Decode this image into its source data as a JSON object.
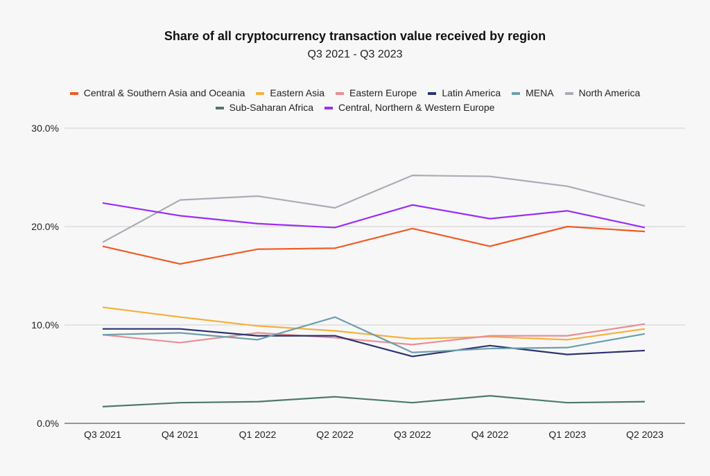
{
  "chart_data": {
    "type": "line",
    "title": "Share of all cryptocurrency transaction value received by region",
    "subtitle": "Q3 2021 - Q3 2023",
    "xlabel": "",
    "ylabel": "",
    "categories": [
      "Q3 2021",
      "Q4 2021",
      "Q1 2022",
      "Q2 2022",
      "Q3 2022",
      "Q4 2022",
      "Q1 2023",
      "Q2 2023"
    ],
    "ylim": [
      0,
      30
    ],
    "yticks": [
      0,
      10,
      20,
      30
    ],
    "ytick_labels": [
      "0.0%",
      "10.0%",
      "20.0%",
      "30.0%"
    ],
    "grid": true,
    "legend_position": "top",
    "series": [
      {
        "name": "Central & Southern Asia and Oceania",
        "color": "#f15a24",
        "values": [
          18.0,
          16.2,
          17.7,
          17.8,
          19.8,
          18.0,
          20.0,
          19.5
        ]
      },
      {
        "name": "Eastern Asia",
        "color": "#f6b03c",
        "values": [
          11.8,
          10.8,
          9.9,
          9.4,
          8.6,
          8.8,
          8.5,
          9.6
        ]
      },
      {
        "name": "Eastern Europe",
        "color": "#e88e92",
        "values": [
          9.0,
          8.2,
          9.2,
          8.7,
          8.0,
          8.9,
          8.9,
          10.1
        ]
      },
      {
        "name": "Latin America",
        "color": "#2b3270",
        "values": [
          9.6,
          9.6,
          8.9,
          8.9,
          6.8,
          7.9,
          7.0,
          7.4
        ]
      },
      {
        "name": "MENA",
        "color": "#6b9fab",
        "values": [
          9.0,
          9.2,
          8.5,
          10.8,
          7.2,
          7.6,
          7.7,
          9.1
        ]
      },
      {
        "name": "North America",
        "color": "#a9acb6",
        "values": [
          18.4,
          22.7,
          23.1,
          21.9,
          25.2,
          25.1,
          24.1,
          22.1
        ]
      },
      {
        "name": "Sub-Saharan Africa",
        "color": "#4d7a66",
        "values": [
          1.7,
          2.1,
          2.2,
          2.7,
          2.1,
          2.8,
          2.1,
          2.2
        ]
      },
      {
        "name": "Central, Northern & Western Europe",
        "color": "#9b2cf5",
        "values": [
          22.4,
          21.1,
          20.3,
          19.9,
          22.2,
          20.8,
          21.6,
          19.9
        ]
      }
    ]
  }
}
